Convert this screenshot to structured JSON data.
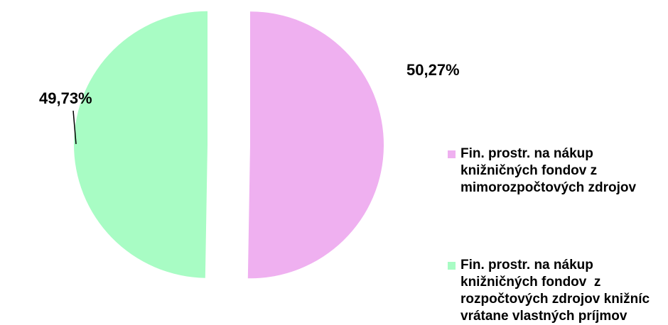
{
  "chart_data": {
    "type": "pie",
    "categories": [
      "Fin. prostr. na nákup knižničných fondov z mimorozpočtových zdrojov",
      "Fin. prostr. na nákup knižničných fondov  z rozpočtových zdrojov knižníc vrátane vlastných príjmov"
    ],
    "values": [
      50.27,
      49.73
    ],
    "value_labels": [
      "50,27%",
      "49,73%"
    ],
    "colors": [
      "#efb0f0",
      "#a8fcc4"
    ],
    "legend": "right"
  }
}
